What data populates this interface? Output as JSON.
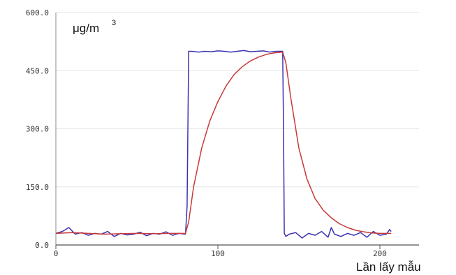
{
  "chart_data": {
    "type": "line",
    "title": "",
    "ylabel": "μg/m",
    "ylabel_superscript": "3",
    "xlabel": "Lần lấy mẫu",
    "xlim": [
      0,
      220
    ],
    "ylim": [
      0,
      600
    ],
    "x_ticks": [
      0,
      100,
      200
    ],
    "x_tick_labels": [
      "0",
      "100",
      "200"
    ],
    "y_ticks": [
      0,
      150,
      300,
      450,
      600
    ],
    "y_tick_labels": [
      "0.0",
      "150.0",
      "300.0",
      "450.0",
      "600.0"
    ],
    "grid": "horizontal",
    "legend": "none",
    "series": [
      {
        "color": "#3a33b0",
        "x": [
          0,
          4,
          8,
          12,
          16,
          20,
          24,
          28,
          32,
          36,
          40,
          44,
          48,
          52,
          56,
          60,
          64,
          68,
          72,
          76,
          80,
          81,
          82,
          84,
          88,
          92,
          96,
          100,
          104,
          108,
          112,
          116,
          120,
          124,
          128,
          132,
          136,
          140,
          140.5,
          141,
          142,
          144,
          148,
          152,
          156,
          160,
          164,
          168,
          170,
          172,
          176,
          180,
          184,
          188,
          192,
          196,
          200,
          204,
          206,
          207
        ],
        "values": [
          30,
          35,
          45,
          28,
          32,
          25,
          30,
          28,
          35,
          22,
          30,
          26,
          28,
          33,
          24,
          30,
          28,
          34,
          25,
          30,
          28,
          100,
          500,
          500,
          498,
          500,
          499,
          501,
          500,
          498,
          500,
          502,
          499,
          500,
          501,
          498,
          500,
          500,
          300,
          30,
          22,
          28,
          32,
          18,
          30,
          25,
          35,
          20,
          45,
          28,
          22,
          30,
          25,
          32,
          20,
          35,
          25,
          28,
          40,
          35
        ]
      },
      {
        "color": "#c83a3a",
        "x": [
          0,
          10,
          20,
          30,
          40,
          50,
          60,
          70,
          80,
          82,
          85,
          90,
          95,
          100,
          105,
          110,
          115,
          120,
          125,
          130,
          135,
          140,
          142,
          145,
          150,
          155,
          160,
          165,
          170,
          175,
          180,
          185,
          190,
          195,
          200,
          205,
          207
        ],
        "values": [
          30,
          32,
          30,
          28,
          29,
          30,
          29,
          30,
          30,
          60,
          150,
          250,
          320,
          370,
          410,
          440,
          460,
          475,
          485,
          492,
          496,
          498,
          470,
          380,
          250,
          170,
          120,
          90,
          70,
          55,
          45,
          38,
          34,
          31,
          30,
          30,
          30
        ]
      }
    ]
  }
}
